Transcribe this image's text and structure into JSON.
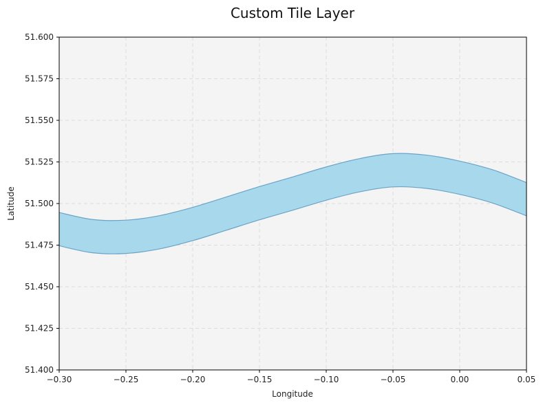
{
  "chart_data": {
    "type": "area",
    "title": "Custom Tile Layer",
    "xlabel": "Longitude",
    "ylabel": "Latitude",
    "xlim": [
      -0.3,
      0.05
    ],
    "ylim": [
      51.4,
      51.6
    ],
    "grid": true,
    "x_ticks": [
      -0.3,
      -0.25,
      -0.2,
      -0.15,
      -0.1,
      -0.05,
      0.0,
      0.05
    ],
    "x_tick_labels": [
      "−0.30",
      "−0.25",
      "−0.20",
      "−0.15",
      "−0.10",
      "−0.05",
      "0.00",
      "0.05"
    ],
    "y_ticks": [
      51.4,
      51.425,
      51.45,
      51.475,
      51.5,
      51.525,
      51.55,
      51.575,
      51.6
    ],
    "y_tick_labels": [
      "51.400",
      "51.425",
      "51.450",
      "51.475",
      "51.500",
      "51.525",
      "51.550",
      "51.575",
      "51.600"
    ],
    "x": [
      -0.3,
      -0.275,
      -0.25,
      -0.225,
      -0.2,
      -0.175,
      -0.15,
      -0.125,
      -0.1,
      -0.075,
      -0.05,
      -0.025,
      0.0,
      0.025,
      0.05
    ],
    "y_lower": [
      51.4746,
      51.4704,
      51.47,
      51.4727,
      51.4777,
      51.4839,
      51.4902,
      51.496,
      51.502,
      51.507,
      51.51,
      51.5091,
      51.5055,
      51.5002,
      51.4926
    ],
    "y_upper": [
      51.4946,
      51.4904,
      51.49,
      51.4927,
      51.4977,
      51.5039,
      51.5102,
      51.516,
      51.522,
      51.527,
      51.53,
      51.5291,
      51.5255,
      51.5202,
      51.5126
    ],
    "colors": {
      "fill": "#a8d8eb",
      "edge": "#6aa3c8",
      "plot_background": "#f4f4f4",
      "grid": "#dddddd"
    }
  }
}
